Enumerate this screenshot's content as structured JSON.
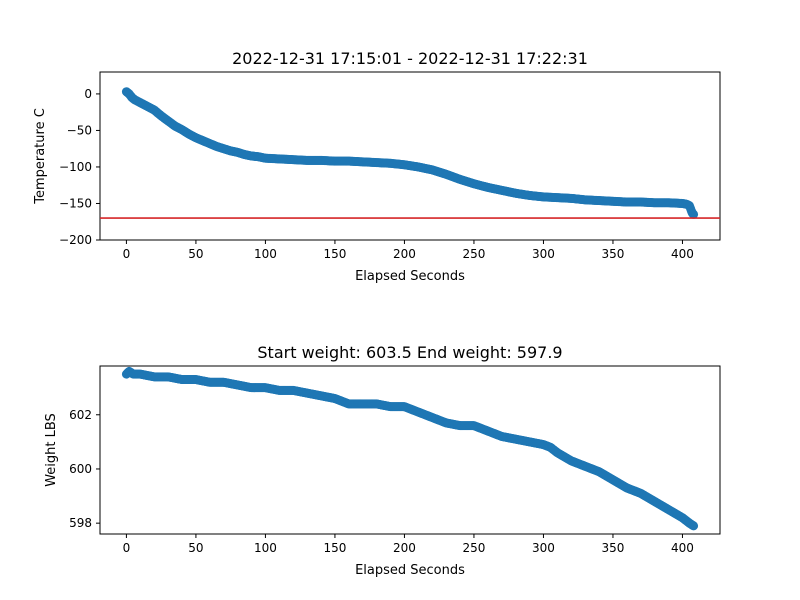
{
  "colors": {
    "series": "#1f77b4",
    "threshold": "#d62728",
    "axes": "#000000",
    "background": "#ffffff"
  },
  "chart_data": [
    {
      "type": "scatter",
      "title": "2022-12-31 17:15:01 - 2022-12-31 17:22:31",
      "xlabel": "Elapsed Seconds",
      "ylabel": "Temperature C",
      "xlim": [
        -19,
        427
      ],
      "ylim": [
        -200,
        30
      ],
      "xticks": [
        0,
        50,
        100,
        150,
        200,
        250,
        300,
        350,
        400
      ],
      "yticks": [
        0,
        -50,
        -100,
        -150,
        -200
      ],
      "ytick_labels": [
        "0",
        "−50",
        "−100",
        "−150",
        "−200"
      ],
      "hline": {
        "y": -170,
        "color": "#d62728"
      },
      "points": [
        [
          0,
          3
        ],
        [
          2,
          0
        ],
        [
          4,
          -5
        ],
        [
          6,
          -8
        ],
        [
          8,
          -10
        ],
        [
          10,
          -12
        ],
        [
          15,
          -17
        ],
        [
          20,
          -22
        ],
        [
          25,
          -30
        ],
        [
          30,
          -37
        ],
        [
          35,
          -44
        ],
        [
          40,
          -49
        ],
        [
          45,
          -55
        ],
        [
          50,
          -60
        ],
        [
          55,
          -64
        ],
        [
          60,
          -68
        ],
        [
          65,
          -72
        ],
        [
          70,
          -75
        ],
        [
          75,
          -78
        ],
        [
          80,
          -80
        ],
        [
          85,
          -83
        ],
        [
          90,
          -85
        ],
        [
          95,
          -86
        ],
        [
          100,
          -88
        ],
        [
          110,
          -89
        ],
        [
          120,
          -90
        ],
        [
          130,
          -91
        ],
        [
          140,
          -91
        ],
        [
          150,
          -92
        ],
        [
          160,
          -92
        ],
        [
          170,
          -93
        ],
        [
          180,
          -94
        ],
        [
          190,
          -95
        ],
        [
          200,
          -97
        ],
        [
          210,
          -100
        ],
        [
          220,
          -104
        ],
        [
          230,
          -110
        ],
        [
          240,
          -117
        ],
        [
          250,
          -123
        ],
        [
          260,
          -128
        ],
        [
          270,
          -132
        ],
        [
          280,
          -136
        ],
        [
          290,
          -139
        ],
        [
          300,
          -141
        ],
        [
          310,
          -142
        ],
        [
          320,
          -143
        ],
        [
          330,
          -145
        ],
        [
          340,
          -146
        ],
        [
          350,
          -147
        ],
        [
          360,
          -148
        ],
        [
          370,
          -148
        ],
        [
          380,
          -149
        ],
        [
          390,
          -149
        ],
        [
          400,
          -150
        ],
        [
          403,
          -151
        ],
        [
          405,
          -153
        ],
        [
          406,
          -158
        ],
        [
          407,
          -163
        ],
        [
          408,
          -165
        ]
      ]
    },
    {
      "type": "scatter",
      "title": "Start weight: 603.5 End weight: 597.9",
      "xlabel": "Elapsed Seconds",
      "ylabel": "Weight LBS",
      "xlim": [
        -19,
        427
      ],
      "ylim": [
        597.6,
        603.8
      ],
      "xticks": [
        0,
        50,
        100,
        150,
        200,
        250,
        300,
        350,
        400
      ],
      "yticks": [
        598,
        600,
        602
      ],
      "ytick_labels": [
        "598",
        "600",
        "602"
      ],
      "points": [
        [
          0,
          603.5
        ],
        [
          2,
          603.6
        ],
        [
          5,
          603.5
        ],
        [
          10,
          603.5
        ],
        [
          20,
          603.4
        ],
        [
          30,
          603.4
        ],
        [
          40,
          603.3
        ],
        [
          50,
          603.3
        ],
        [
          60,
          603.2
        ],
        [
          70,
          603.2
        ],
        [
          80,
          603.1
        ],
        [
          90,
          603.0
        ],
        [
          100,
          603.0
        ],
        [
          110,
          602.9
        ],
        [
          120,
          602.9
        ],
        [
          130,
          602.8
        ],
        [
          140,
          602.7
        ],
        [
          150,
          602.6
        ],
        [
          155,
          602.5
        ],
        [
          160,
          602.4
        ],
        [
          170,
          602.4
        ],
        [
          180,
          602.4
        ],
        [
          190,
          602.3
        ],
        [
          200,
          602.3
        ],
        [
          210,
          602.1
        ],
        [
          220,
          601.9
        ],
        [
          230,
          601.7
        ],
        [
          240,
          601.6
        ],
        [
          250,
          601.6
        ],
        [
          260,
          601.4
        ],
        [
          270,
          601.2
        ],
        [
          280,
          601.1
        ],
        [
          290,
          601.0
        ],
        [
          300,
          600.9
        ],
        [
          305,
          600.8
        ],
        [
          310,
          600.6
        ],
        [
          320,
          600.3
        ],
        [
          330,
          600.1
        ],
        [
          340,
          599.9
        ],
        [
          350,
          599.6
        ],
        [
          360,
          599.3
        ],
        [
          370,
          599.1
        ],
        [
          380,
          598.8
        ],
        [
          390,
          598.5
        ],
        [
          400,
          598.2
        ],
        [
          405,
          598.0
        ],
        [
          408,
          597.9
        ]
      ]
    }
  ]
}
